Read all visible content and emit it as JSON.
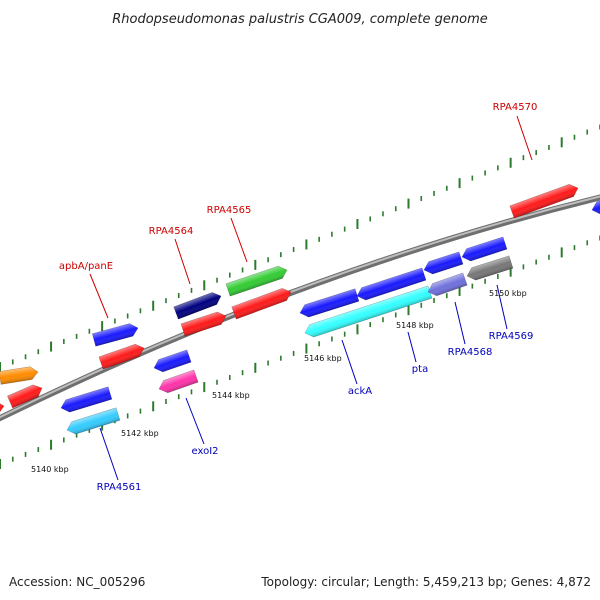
{
  "title": "Rhodopseudomonas palustris CGA009, complete genome",
  "footer": {
    "accession": "Accession: NC_005296",
    "summary": "Topology: circular; Length: 5,459,213 bp; Genes: 4,872"
  },
  "colors": {
    "backbone": "#888888",
    "tick": "#2d7a2d",
    "label_forward": "#cc0000",
    "label_reverse": "#0000bb",
    "leader": "#cc0000",
    "leader_reverse": "#0000bb"
  },
  "ruler_labels": [
    "5140 kbp",
    "5142 kbp",
    "5144 kbp",
    "5146 kbp",
    "5148 kbp",
    "5150 kbp"
  ],
  "gene_labels_forward": [
    "apbA/panE",
    "RPA4564",
    "RPA4565",
    "RPA4570"
  ],
  "gene_labels_reverse": [
    "RPA4561",
    "exoI2",
    "ackA",
    "pta",
    "RPA4568",
    "RPA4569"
  ],
  "features": [
    {
      "color": "#ff8c00",
      "strand": "forward-outer"
    },
    {
      "color": "#ff1a1a",
      "strand": "forward"
    },
    {
      "color": "#ff1a1a",
      "strand": "forward"
    },
    {
      "color": "#1a1aff",
      "strand": "forward-outer"
    },
    {
      "color": "#ff1a1a",
      "strand": "forward"
    },
    {
      "color": "#000080",
      "strand": "forward-outer"
    },
    {
      "color": "#ff1a1a",
      "strand": "forward"
    },
    {
      "color": "#33cc33",
      "strand": "forward-outer"
    },
    {
      "color": "#ff1a1a",
      "strand": "forward"
    },
    {
      "color": "#ff1a1a",
      "strand": "forward"
    },
    {
      "color": "#1a1aff",
      "strand": "reverse"
    },
    {
      "color": "#33ccff",
      "strand": "reverse-inner"
    },
    {
      "color": "#1a1aff",
      "strand": "reverse"
    },
    {
      "color": "#ff33aa",
      "strand": "reverse-inner"
    },
    {
      "color": "#1a1aff",
      "strand": "reverse"
    },
    {
      "color": "#1a1aff",
      "strand": "reverse"
    },
    {
      "color": "#1a1aff",
      "strand": "reverse"
    },
    {
      "color": "#33ffff",
      "strand": "reverse-inner"
    },
    {
      "color": "#7070dd",
      "strand": "reverse-inner"
    },
    {
      "color": "#1a1aff",
      "strand": "reverse"
    },
    {
      "color": "#777777",
      "strand": "reverse-inner"
    },
    {
      "color": "#1a1aff",
      "strand": "reverse"
    }
  ]
}
